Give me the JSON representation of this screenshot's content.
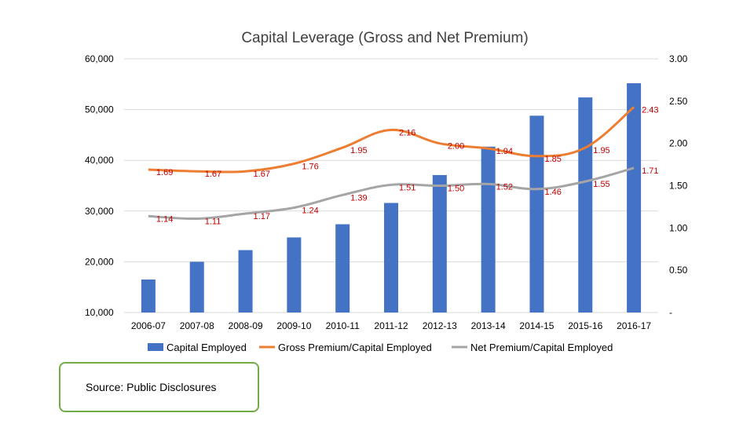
{
  "chart_data": {
    "type": "bar+line",
    "title": "Capital Leverage (Gross and Net Premium)",
    "categories": [
      "2006-07",
      "2007-08",
      "2008-09",
      "2009-10",
      "2010-11",
      "2011-12",
      "2012-13",
      "2013-14",
      "2014-15",
      "2015-16",
      "2016-17"
    ],
    "left_axis": {
      "min": 10000,
      "max": 60000,
      "ticks": [
        "10,000",
        "20,000",
        "30,000",
        "40,000",
        "50,000",
        "60,000"
      ]
    },
    "right_axis": {
      "min": 0,
      "max": 3.0,
      "ticks": [
        "-",
        "0.50",
        "1.00",
        "1.50",
        "2.00",
        "2.50",
        "3.00"
      ]
    },
    "series": [
      {
        "name": "Capital Employed",
        "type": "bar",
        "axis": "left",
        "color": "#4472c4",
        "values": [
          16500,
          20000,
          22300,
          24800,
          27400,
          31600,
          37100,
          42700,
          48800,
          52400,
          55200
        ]
      },
      {
        "name": "Gross Premium/Capital Employed",
        "type": "line",
        "axis": "right",
        "color": "#ed7d31",
        "values": [
          1.69,
          1.67,
          1.67,
          1.76,
          1.95,
          2.16,
          2.0,
          1.94,
          1.85,
          1.95,
          2.43
        ],
        "labels": [
          "1.69",
          "1.67",
          "1.67",
          "1.76",
          "1.95",
          "2.16",
          "2.00",
          "1.94",
          "1.85",
          "1.95",
          "2.43"
        ]
      },
      {
        "name": "Net Premium/Capital Employed",
        "type": "line",
        "axis": "right",
        "color": "#a5a5a5",
        "values": [
          1.14,
          1.11,
          1.17,
          1.24,
          1.39,
          1.51,
          1.5,
          1.52,
          1.46,
          1.55,
          1.71
        ],
        "labels": [
          "1.14",
          "1.11",
          "1.17",
          "1.24",
          "1.39",
          "1.51",
          "1.50",
          "1.52",
          "1.46",
          "1.55",
          "1.71"
        ]
      }
    ],
    "legend_position": "bottom",
    "grid": "horizontal"
  },
  "source": "Source: Public Disclosures"
}
